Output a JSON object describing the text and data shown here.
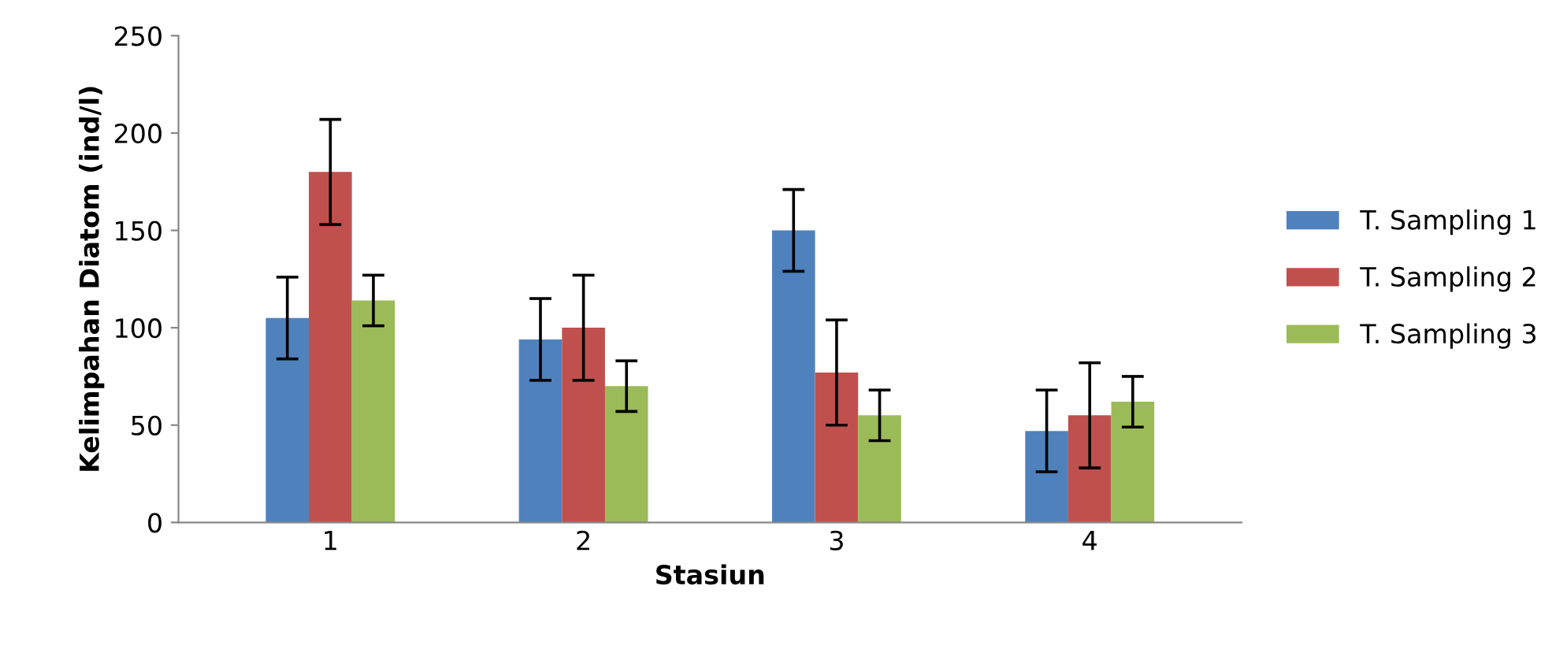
{
  "chart_data": {
    "type": "bar",
    "xlabel": "Stasiun",
    "ylabel": "Kelimpahan Diatom (ind/l)",
    "categories": [
      "1",
      "2",
      "3",
      "4"
    ],
    "series": [
      {
        "name": "T. Sampling 1",
        "color": "#4f81bd",
        "values": [
          105,
          94,
          150,
          47
        ],
        "errors": [
          21,
          21,
          21,
          21
        ]
      },
      {
        "name": "T. Sampling 2",
        "color": "#c0504d",
        "values": [
          180,
          100,
          77,
          55
        ],
        "errors": [
          27,
          27,
          27,
          27
        ]
      },
      {
        "name": "T. Sampling 3",
        "color": "#9bbb59",
        "values": [
          114,
          70,
          55,
          62
        ],
        "errors": [
          13,
          13,
          13,
          13
        ]
      }
    ],
    "ylim": [
      0,
      250
    ],
    "yticks": [
      0,
      50,
      100,
      150,
      200,
      250
    ],
    "grid": false,
    "legend": "right"
  }
}
